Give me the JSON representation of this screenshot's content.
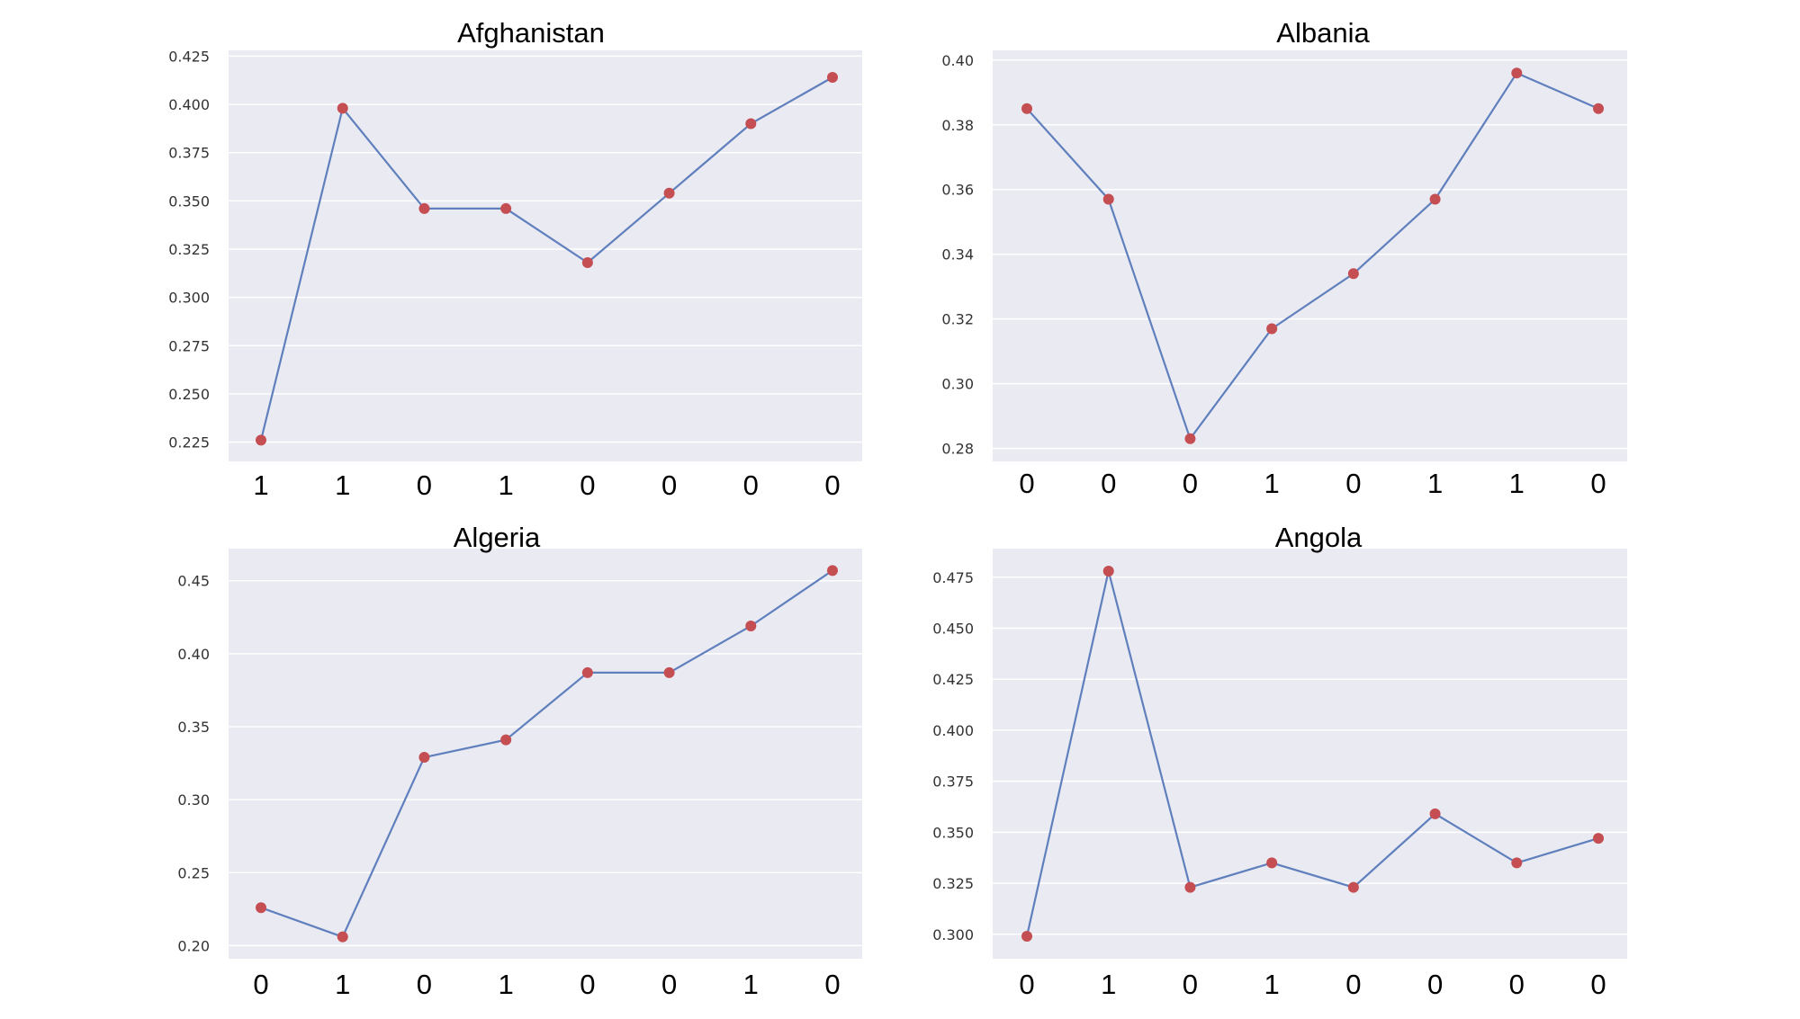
{
  "chart_data": [
    {
      "type": "line",
      "title": "Afghanistan",
      "categories": [
        "1",
        "1",
        "0",
        "1",
        "0",
        "0",
        "0",
        "0"
      ],
      "values": [
        0.226,
        0.398,
        0.346,
        0.346,
        0.318,
        0.354,
        0.39,
        0.414
      ],
      "ylim": [
        0.215,
        0.428
      ],
      "yticks": [
        0.225,
        0.25,
        0.275,
        0.3,
        0.325,
        0.35,
        0.375,
        0.4,
        0.425
      ],
      "ytick_labels": [
        "0.225",
        "0.250",
        "0.275",
        "0.300",
        "0.325",
        "0.350",
        "0.375",
        "0.400",
        "0.425"
      ],
      "grid": true,
      "line_color": "#5f7fbd",
      "marker_color": "#c44e52"
    },
    {
      "type": "line",
      "title": "Albania",
      "categories": [
        "0",
        "0",
        "0",
        "1",
        "0",
        "1",
        "1",
        "0"
      ],
      "values": [
        0.385,
        0.357,
        0.283,
        0.317,
        0.334,
        0.357,
        0.396,
        0.385
      ],
      "ylim": [
        0.276,
        0.403
      ],
      "yticks": [
        0.28,
        0.3,
        0.32,
        0.34,
        0.36,
        0.38,
        0.4
      ],
      "ytick_labels": [
        "0.28",
        "0.30",
        "0.32",
        "0.34",
        "0.36",
        "0.38",
        "0.40"
      ],
      "grid": true,
      "line_color": "#5f7fbd",
      "marker_color": "#c44e52"
    },
    {
      "type": "line",
      "title": "Algeria",
      "categories": [
        "0",
        "1",
        "0",
        "1",
        "0",
        "0",
        "1",
        "0"
      ],
      "values": [
        0.226,
        0.206,
        0.329,
        0.341,
        0.387,
        0.387,
        0.419,
        0.457
      ],
      "ylim": [
        0.191,
        0.472
      ],
      "yticks": [
        0.2,
        0.25,
        0.3,
        0.35,
        0.4,
        0.45
      ],
      "ytick_labels": [
        "0.20",
        "0.25",
        "0.30",
        "0.35",
        "0.40",
        "0.45"
      ],
      "grid": true,
      "line_color": "#5f7fbd",
      "marker_color": "#c44e52"
    },
    {
      "type": "line",
      "title": "Angola",
      "categories": [
        "0",
        "1",
        "0",
        "1",
        "0",
        "0",
        "0",
        "0"
      ],
      "values": [
        0.299,
        0.478,
        0.323,
        0.335,
        0.323,
        0.359,
        0.335,
        0.347
      ],
      "ylim": [
        0.288,
        0.489
      ],
      "yticks": [
        0.3,
        0.325,
        0.35,
        0.375,
        0.4,
        0.425,
        0.45,
        0.475
      ],
      "ytick_labels": [
        "0.300",
        "0.325",
        "0.350",
        "0.375",
        "0.400",
        "0.425",
        "0.450",
        "0.475"
      ],
      "grid": true,
      "line_color": "#5f7fbd",
      "marker_color": "#c44e52"
    }
  ]
}
